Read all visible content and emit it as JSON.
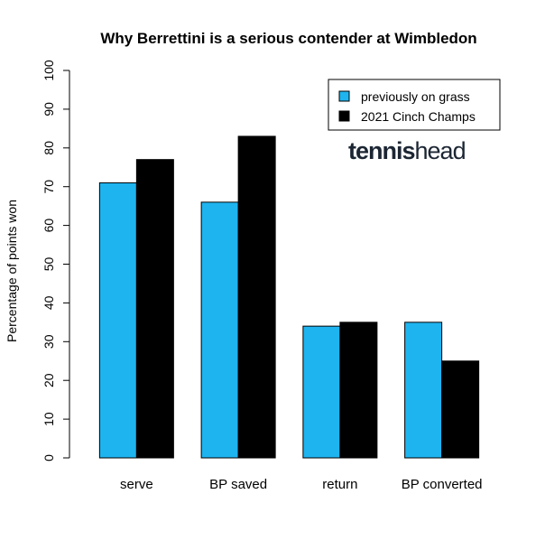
{
  "chart_data": {
    "type": "bar",
    "title": "Why Berrettini is a serious contender at Wimbledon",
    "xlabel": "",
    "ylabel": "Percentage of points won",
    "categories": [
      "serve",
      "BP saved",
      "return",
      "BP converted"
    ],
    "series": [
      {
        "name": "previously on grass",
        "values": [
          71,
          66,
          34,
          35
        ],
        "color": "#1eb4f0"
      },
      {
        "name": "2021 Cinch Champs",
        "values": [
          77,
          83,
          35,
          25
        ],
        "color": "#000000"
      }
    ],
    "ylim": [
      0,
      100
    ],
    "yticks": [
      0,
      10,
      20,
      30,
      40,
      50,
      60,
      70,
      80,
      90,
      100
    ],
    "grid": false,
    "legend_position": "top-right"
  },
  "watermark": {
    "text_dark": "tennis",
    "text_light": "head"
  }
}
